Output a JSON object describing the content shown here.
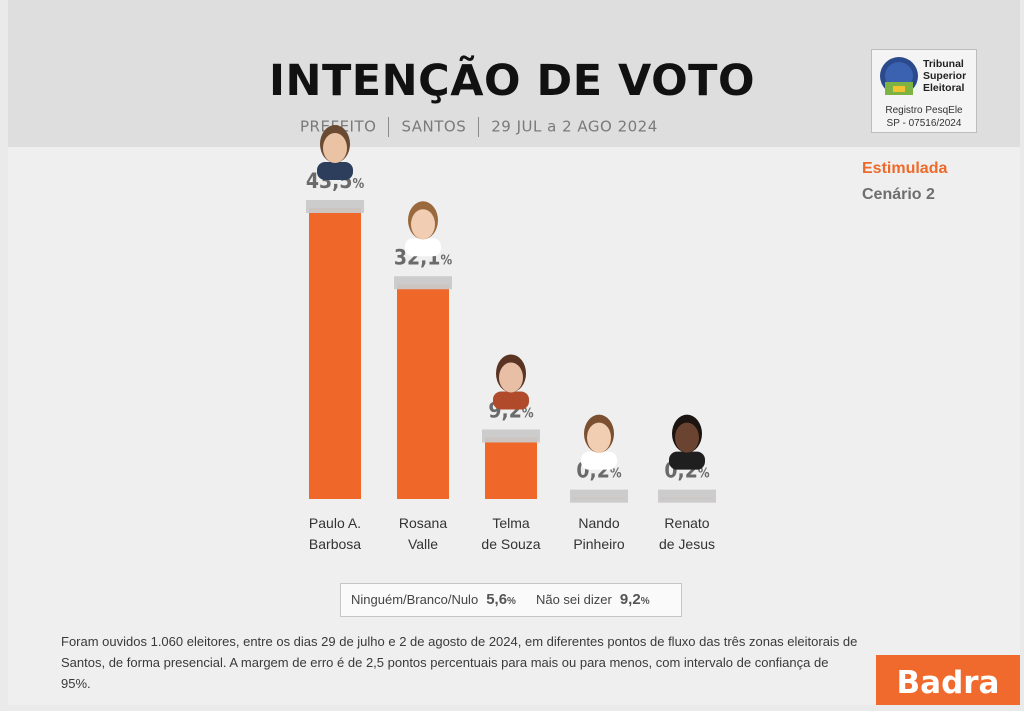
{
  "header": {
    "title": "INTENÇÃO DE VOTO",
    "subtitle": [
      "PREFEITO",
      "SANTOS",
      "29 JUL a 2 AGO 2024"
    ]
  },
  "tse": {
    "org_lines": [
      "Tribunal",
      "Superior",
      "Eleitoral"
    ],
    "registry_label": "Registro PesqEle",
    "registry_code": "SP - 07516/2024"
  },
  "legend": {
    "type": "Estimulada",
    "scenario": "Cenário 2"
  },
  "colors": {
    "bar": "#F0672A",
    "bar_cap": "#C9C9C9",
    "accent": "#EE6A2A",
    "brand": "#EF6A2C"
  },
  "chart_data": {
    "type": "bar",
    "title": "INTENÇÃO DE VOTO",
    "categories": [
      [
        "Paulo A.",
        "Barbosa"
      ],
      [
        "Rosana",
        "Valle"
      ],
      [
        "Telma",
        "de Souza"
      ],
      [
        "Nando",
        "Pinheiro"
      ],
      [
        "Renato",
        "de Jesus"
      ]
    ],
    "values": [
      43.5,
      32.1,
      9.2,
      0.2,
      0.2
    ],
    "value_labels": [
      "43,5",
      "32,1",
      "9,2",
      "0,2",
      "0,2"
    ],
    "unit": "%",
    "ylim": [
      0,
      43.5
    ],
    "grid": false,
    "candidate_photos": true
  },
  "others": {
    "blank_label": "Ninguém/Branco/Nulo",
    "blank_value": "5,6",
    "unknown_label": "Não sei dizer",
    "unknown_value": "9,2",
    "unit": "%"
  },
  "footnote": {
    "line1": "Foram ouvidos 1.060 eleitores, entre os dias 29 de julho e 2 de agosto de 2024, em diferentes pontos de fluxo das três zonas eleitorais de",
    "line2": "Santos, de forma presencial. A margem de erro é de 2,5 pontos percentuais para mais ou para menos, com intervalo de confiança de 95%."
  },
  "brand": {
    "name": "Badra"
  }
}
